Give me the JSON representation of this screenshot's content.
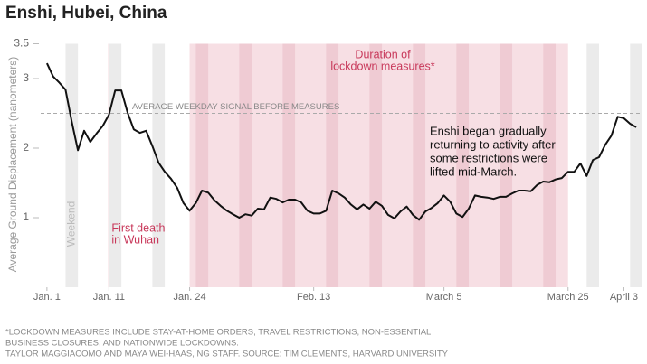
{
  "chart_data": {
    "type": "line",
    "title": "Enshi, Hubei, China",
    "y_label": "Average Ground Displacement (nanometers)",
    "x": [
      0,
      1,
      2,
      3,
      4,
      5,
      6,
      7,
      8,
      9,
      10,
      11,
      12,
      13,
      14,
      15,
      16,
      17,
      18,
      19,
      20,
      21,
      22,
      23,
      24,
      25,
      26,
      27,
      28,
      29,
      30,
      31,
      32,
      33,
      34,
      35,
      36,
      37,
      38,
      39,
      40,
      41,
      42,
      43,
      44,
      45,
      46,
      47,
      48,
      49,
      50,
      51,
      52,
      53,
      54,
      55,
      56,
      57,
      58,
      59,
      60,
      61,
      62,
      63,
      64,
      65,
      66,
      67,
      68,
      69,
      70,
      71,
      72,
      73,
      74,
      75,
      76,
      77,
      78,
      79,
      80,
      81,
      82,
      83,
      84,
      85,
      86,
      87,
      88,
      89,
      90,
      91,
      92,
      93,
      94,
      95
    ],
    "values": [
      3.22,
      3.03,
      2.94,
      2.84,
      2.38,
      1.97,
      2.25,
      2.09,
      2.21,
      2.32,
      2.48,
      2.83,
      2.83,
      2.51,
      2.27,
      2.22,
      2.25,
      2.03,
      1.79,
      1.66,
      1.56,
      1.43,
      1.21,
      1.1,
      1.21,
      1.39,
      1.36,
      1.25,
      1.17,
      1.1,
      1.05,
      1.0,
      1.05,
      1.03,
      1.13,
      1.12,
      1.29,
      1.27,
      1.22,
      1.26,
      1.26,
      1.22,
      1.1,
      1.06,
      1.06,
      1.1,
      1.39,
      1.35,
      1.29,
      1.19,
      1.12,
      1.19,
      1.13,
      1.23,
      1.17,
      1.04,
      0.99,
      1.09,
      1.16,
      1.04,
      0.97,
      1.09,
      1.14,
      1.21,
      1.32,
      1.23,
      1.06,
      1.01,
      1.13,
      1.32,
      1.3,
      1.29,
      1.27,
      1.3,
      1.3,
      1.35,
      1.39,
      1.39,
      1.38,
      1.47,
      1.52,
      1.51,
      1.55,
      1.57,
      1.66,
      1.66,
      1.78,
      1.6,
      1.83,
      1.87,
      2.05,
      2.18,
      2.45,
      2.43,
      2.35,
      2.3
    ],
    "color": "#111111",
    "xlim": [
      -1,
      96
    ],
    "ylim": [
      0,
      3.5
    ],
    "xticks": [
      {
        "value": 0,
        "label": "Jan. 1"
      },
      {
        "value": 10,
        "label": "Jan. 11"
      },
      {
        "value": 23,
        "label": "Jan. 24"
      },
      {
        "value": 43,
        "label": "Feb. 13"
      },
      {
        "value": 64,
        "label": "March 5"
      },
      {
        "value": 84,
        "label": "March 25"
      },
      {
        "value": 93,
        "label": "April 3"
      }
    ],
    "yticks": [
      1,
      2,
      3,
      3.5
    ],
    "weekends": [
      [
        3,
        5
      ],
      [
        10,
        12
      ],
      [
        17,
        19
      ],
      [
        24,
        26
      ],
      [
        31,
        33
      ],
      [
        38,
        40
      ],
      [
        45,
        47
      ],
      [
        52,
        54
      ],
      [
        59,
        61
      ],
      [
        66,
        68
      ],
      [
        73,
        75
      ],
      [
        80,
        82
      ],
      [
        87,
        89
      ],
      [
        94,
        96
      ]
    ],
    "weekend_label": "Weekend",
    "lockdown": [
      23,
      84
    ],
    "lockdown_label": [
      "Duration of",
      "lockdown measures*"
    ],
    "first_death": {
      "x": 10,
      "label": [
        "First death",
        "in Wuhan"
      ]
    },
    "reference_line": {
      "value": 2.5,
      "label": "AVERAGE WEEKDAY SIGNAL BEFORE MEASURES"
    },
    "annotation": [
      "Enshi began gradually",
      "returning to activity after",
      "some restrictions were",
      "lifted mid-March."
    ],
    "footnotes": [
      "*LOCKDOWN MEASURES INCLUDE STAY-AT-HOME ORDERS, TRAVEL RESTRICTIONS, NON-ESSENTIAL",
      "BUSINESS CLOSURES, AND NATIONWIDE LOCKDOWNS.",
      "TAYLOR MAGGIACOMO AND MAYA WEI-HAAS, NG STAFF. SOURCE: TIM CLEMENTS, HARVARD UNIVERSITY"
    ]
  }
}
